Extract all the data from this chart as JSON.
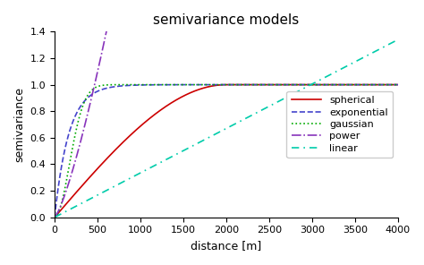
{
  "title": "semivariance models",
  "xlabel": "distance [m]",
  "ylabel": "semivariance",
  "xlim": [
    0,
    4000
  ],
  "ylim": [
    0,
    1.4
  ],
  "x_max": 4000,
  "n_points": 1000,
  "spherical": {
    "sill": 1.0,
    "range": 2000,
    "color": "#cc0000",
    "linestyle": "-",
    "label": "spherical",
    "linewidth": 1.2
  },
  "exponential": {
    "sill": 1.0,
    "range": 500,
    "color": "#4444cc",
    "linestyle": "--",
    "label": "exponential",
    "linewidth": 1.2
  },
  "gaussian": {
    "sill": 1.0,
    "range": 420,
    "color": "#00aa00",
    "linestyle": ":",
    "label": "gaussian",
    "linewidth": 1.2
  },
  "power": {
    "scale": 0.00034,
    "exponent": 1.3,
    "color": "#8833bb",
    "linestyle": "-.",
    "label": "power",
    "linewidth": 1.2
  },
  "linear": {
    "slope": 0.000335,
    "color": "#00ccaa",
    "linestyle": "--",
    "label": "linear",
    "linewidth": 1.2
  },
  "legend_loc": "center right",
  "bg_color": "#ffffff",
  "yticks": [
    0.0,
    0.2,
    0.4,
    0.6,
    0.8,
    1.0,
    1.2,
    1.4
  ],
  "xticks": [
    0,
    500,
    1000,
    1500,
    2000,
    2500,
    3000,
    3500,
    4000
  ]
}
